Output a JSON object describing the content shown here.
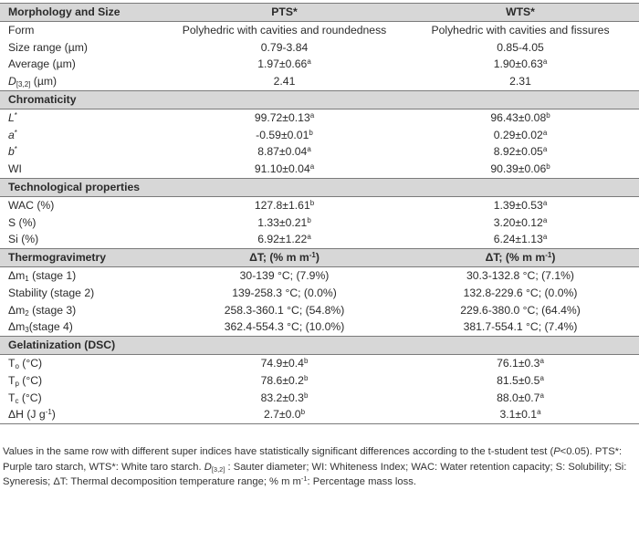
{
  "header": {
    "c1": "Morphology and Size",
    "c2": "PTS*",
    "c3": "WTS*"
  },
  "morphology": [
    {
      "label": "Form",
      "pts": "Polyhedric with cavities and roundedness",
      "wts": "Polyhedric with cavities and fissures"
    },
    {
      "label": "Size range (µm)",
      "pts": "0.79-3.84",
      "wts": "0.85-4.05"
    },
    {
      "label": "Average (µm)",
      "pts": "1.97±0.66",
      "pts_sup": "a",
      "wts": "1.90±0.63",
      "wts_sup": "a"
    },
    {
      "label_pre": "D",
      "label_sub": "[3,2]",
      "label_post": " (µm)",
      "pts": "2.41",
      "wts": "2.31"
    }
  ],
  "chromaticity": {
    "title": "Chromaticity",
    "rows": [
      {
        "label": "L",
        "label_sup": "*",
        "pts": "99.72±0.13",
        "pts_sup": "a",
        "wts": "96.43±0.08",
        "wts_sup": "b"
      },
      {
        "label": "a",
        "label_sup": "*",
        "pts": "-0.59±0.01",
        "pts_sup": "b",
        "wts": "0.29±0.02",
        "wts_sup": "a"
      },
      {
        "label": "b",
        "label_sup": "*",
        "pts": "8.87±0.04",
        "pts_sup": "a",
        "wts": "8.92±0.05",
        "wts_sup": "a"
      },
      {
        "label": "WI",
        "pts": "91.10±0.04",
        "pts_sup": "a",
        "wts": "90.39±0.06",
        "wts_sup": "b"
      }
    ]
  },
  "technological": {
    "title": "Technological properties",
    "rows": [
      {
        "label": "WAC (%)",
        "pts": "127.8±1.61",
        "pts_sup": "b",
        "wts": "1.39±0.53",
        "wts_sup": "a"
      },
      {
        "label": "S (%)",
        "pts": "1.33±0.21",
        "pts_sup": "b",
        "wts": "3.20±0.12",
        "wts_sup": "a"
      },
      {
        "label": "Si (%)",
        "pts": "6.92±1.22",
        "pts_sup": "a",
        "wts": "6.24±1.13",
        "wts_sup": "a"
      }
    ]
  },
  "thermo": {
    "title": "Thermogravimetry",
    "col_pre": "ΔT; (% m m",
    "col_sup": "-1",
    "col_post": ")",
    "rows": [
      {
        "label_pre": "Δm",
        "label_sub": "1",
        "label_post": " (stage 1)",
        "pts": "30-139 °C; (7.9%)",
        "wts": "30.3-132.8 °C; (7.1%)"
      },
      {
        "label_pre": "Stability (stage 2)",
        "pts": "139-258.3 °C; (0.0%)",
        "wts": "132.8-229.6 °C; (0.0%)"
      },
      {
        "label_pre": "Δm",
        "label_sub": "2",
        "label_post": " (stage 3)",
        "pts": "258.3-360.1 °C; (54.8%)",
        "wts": "229.6-380.0 °C; (64.4%)"
      },
      {
        "label_pre": "Δm",
        "label_sub": "3",
        "label_post": "(stage 4)",
        "pts": "362.4-554.3 °C; (10.0%)",
        "wts": "381.7-554.1 °C; (7.4%)"
      }
    ]
  },
  "gelatinization": {
    "title": "Gelatinization (DSC)",
    "rows": [
      {
        "label_pre": "T",
        "label_sub": "o",
        "label_post": " (°C)",
        "pts": "74.9±0.4",
        "pts_sup": "b",
        "wts": "76.1±0.3",
        "wts_sup": "a"
      },
      {
        "label_pre": "T",
        "label_sub": "p",
        "label_post": " (°C)",
        "pts": "78.6±0.2",
        "pts_sup": "b",
        "wts": "81.5±0.5",
        "wts_sup": "a"
      },
      {
        "label_pre": "T",
        "label_sub": "c",
        "label_post": " (°C)",
        "pts": "83.2±0.3",
        "pts_sup": "b",
        "wts": "88.0±0.7",
        "wts_sup": "a"
      },
      {
        "label_pre": "ΔH (J g",
        "label_sup": "-1",
        "label_post": ")",
        "pts": "2.7±0.0",
        "pts_sup": "b",
        "wts": "3.1±0.1",
        "wts_sup": "a"
      }
    ]
  },
  "note": {
    "p1": "Values in the same row with different super indices have statistically significant differences according to the t-student test (",
    "p1_italic": "P",
    "p2": "<0.05). PTS*: Purple taro starch, WTS*:  White taro starch. ",
    "d": "D",
    "d_sub": "[3,2]",
    "p3": " : Sauter diameter; WI: Whiteness Index; WAC: Water retention capacity; S: Solubility; Si: Syneresis; ΔT: Thermal decomposition temperature range; % m m",
    "p3_sup": "-1",
    "p4": ": Percentage mass loss."
  }
}
